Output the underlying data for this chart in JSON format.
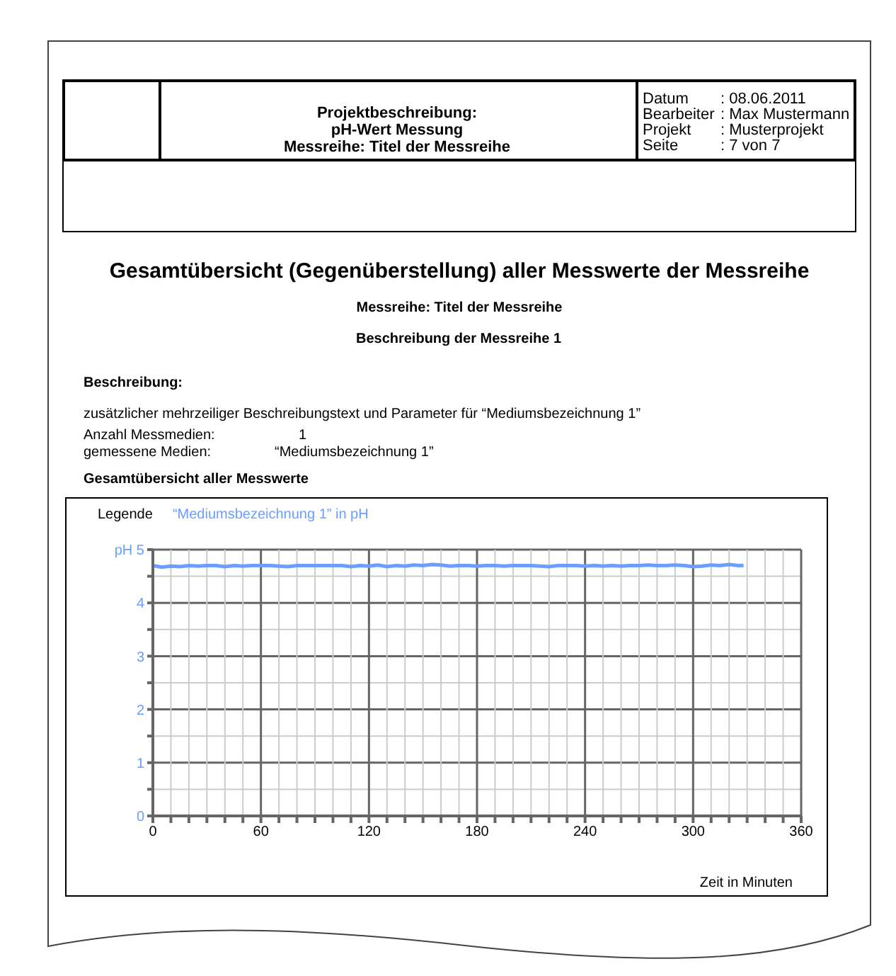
{
  "chart_data": {
    "type": "line",
    "title": "Gesamtübersicht (Gegenüberstellung) aller Messwerte der Messreihe",
    "subtitle": "Messreihe: Titel der Messreihe",
    "xlabel": "Zeit in Minuten",
    "legend_title": "Legende",
    "annotations": [
      "Projektbeschreibung:",
      "pH-Wert Messung",
      "Messreihe: Titel der Messreihe",
      "Datum",
      ": 08.06.2011",
      "Bearbeiter",
      ": Max Mustermann",
      "Projekt",
      ": Musterprojekt",
      "Seite",
      ": 7 von 7",
      "Beschreibung der Messreihe 1",
      "Beschreibung:",
      "zusätzlicher mehrzeiliger Beschreibungstext und Parameter für “Mediumsbezeichnung 1”",
      "Anzahl Messmedien:",
      "1",
      "gemessene Medien:",
      "“Mediumsbezeichnung 1”",
      "Gesamtübersicht aller Messwerte"
    ],
    "x": [
      0,
      5,
      10,
      15,
      20,
      25,
      30,
      35,
      40,
      45,
      50,
      55,
      60,
      65,
      70,
      75,
      80,
      85,
      90,
      95,
      100,
      105,
      110,
      115,
      120,
      125,
      130,
      135,
      140,
      145,
      150,
      155,
      160,
      165,
      170,
      175,
      180,
      185,
      190,
      195,
      200,
      205,
      210,
      215,
      220,
      225,
      230,
      235,
      240,
      245,
      250,
      255,
      260,
      265,
      270,
      275,
      280,
      285,
      290,
      295,
      300,
      305,
      310,
      315,
      320,
      325,
      328
    ],
    "series": [
      {
        "name": "“Mediumsbezeichnung 1” in pH",
        "color": "#6a9eff",
        "values": [
          4.7,
          4.67,
          4.69,
          4.68,
          4.7,
          4.69,
          4.7,
          4.7,
          4.68,
          4.7,
          4.69,
          4.7,
          4.7,
          4.7,
          4.69,
          4.68,
          4.7,
          4.7,
          4.7,
          4.7,
          4.7,
          4.7,
          4.68,
          4.7,
          4.69,
          4.71,
          4.68,
          4.7,
          4.69,
          4.71,
          4.7,
          4.72,
          4.71,
          4.69,
          4.7,
          4.7,
          4.69,
          4.7,
          4.7,
          4.69,
          4.7,
          4.7,
          4.7,
          4.69,
          4.68,
          4.7,
          4.7,
          4.7,
          4.69,
          4.7,
          4.69,
          4.7,
          4.69,
          4.7,
          4.7,
          4.71,
          4.7,
          4.7,
          4.71,
          4.7,
          4.68,
          4.69,
          4.71,
          4.7,
          4.72,
          4.7,
          4.7
        ]
      }
    ],
    "xlim": [
      0,
      360
    ],
    "xticks": [
      0,
      {
        "value": 10,
        "label": null
      },
      {
        "value": 20,
        "label": null
      },
      {
        "value": 30,
        "label": null
      },
      {
        "value": 40,
        "label": null
      },
      {
        "value": 50,
        "label": null
      },
      60,
      {
        "value": 70,
        "label": null
      },
      {
        "value": 80,
        "label": null
      },
      {
        "value": 90,
        "label": null
      },
      {
        "value": 100,
        "label": null
      },
      {
        "value": 110,
        "label": null
      },
      120,
      {
        "value": 130,
        "label": null
      },
      {
        "value": 140,
        "label": null
      },
      {
        "value": 150,
        "label": null
      },
      {
        "value": 160,
        "label": null
      },
      {
        "value": 170,
        "label": null
      },
      180,
      {
        "value": 190,
        "label": null
      },
      {
        "value": 200,
        "label": null
      },
      {
        "value": 210,
        "label": null
      },
      {
        "value": 220,
        "label": null
      },
      {
        "value": 230,
        "label": null
      },
      240,
      {
        "value": 250,
        "label": null
      },
      {
        "value": 260,
        "label": null
      },
      {
        "value": 270,
        "label": null
      },
      {
        "value": 280,
        "label": null
      },
      {
        "value": 290,
        "label": null
      },
      300,
      {
        "value": 310,
        "label": null
      },
      {
        "value": 320,
        "label": null
      },
      {
        "value": 330,
        "label": null
      },
      {
        "value": 340,
        "label": null
      },
      {
        "value": 350,
        "label": null
      },
      360
    ],
    "ylim": [
      0,
      5
    ],
    "yticks": [
      0,
      {
        "value": 0.5,
        "label": null
      },
      1,
      {
        "value": 1.5,
        "label": null
      },
      2,
      {
        "value": 2.5,
        "label": null
      },
      3,
      {
        "value": 3.5,
        "label": null
      },
      4,
      {
        "value": 4.5,
        "label": null
      },
      {
        "value": 5,
        "label": "pH 5"
      }
    ],
    "grid": true,
    "legend": "top",
    "marker": "none",
    "line_style": "solid"
  }
}
